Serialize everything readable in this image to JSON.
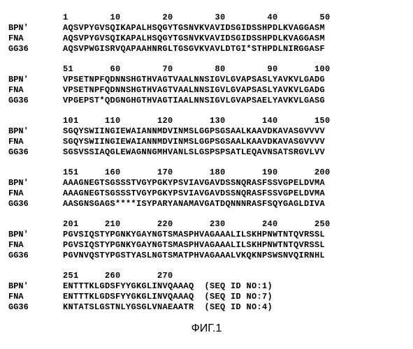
{
  "figure": {
    "caption": "ФИГ.1",
    "font_family_seq": "Courier New",
    "font_weight_seq": "bold",
    "font_size_seq_pt": 9,
    "font_family_caption": "Arial",
    "font_size_caption_pt": 12,
    "background_color": "#ffffff",
    "text_color": "#000000"
  },
  "alignment": {
    "labels": [
      "BPN'",
      "FNA",
      "GG36"
    ],
    "blocks": [
      {
        "ruler": "1        10        20        30        40        50",
        "rows": [
          "AQSVPYGVSQIKAPALHSQGYTGSNVKVAVIDSGIDSSHPDLKVAGGASM",
          "AQSVPYGVSQIKAPALHSQGYTGSNVKVAVIDSGIDSSHPDLKVAGGASM",
          "AQSVPWGISRVQAPAAHNRGLTGSGVKVAVLDTGI*STHPDLNIRGGASF"
        ]
      },
      {
        "ruler": "51       60        70        80        90       100",
        "rows": [
          "VPSETNPFQDNNSHGTHVAGTVAALNNSIGVLGVAPSASLYAVKVLGADG",
          "VPSETNPFQDNNSHGTHVAGTVAALNNSIGVLGVAPSASLYAVKVLGADG",
          "VPGEPST*QDGNGHGTHVAGTIAALNNSIGVLGVAPSAELYAVKVLGASG"
        ]
      },
      {
        "ruler": "101     110       120       130       140       150",
        "rows": [
          "SGQYSWIINGIEWAIANNMDVINMSLGGPSGSAALKAAVDKAVASGVVVV",
          "SGQYSWIINGIEWAIANNMDVINMSLGGPSGSAALKAAVDKAVASGVVVV",
          "SGSVSSIAQGLEWAGNNGMHVANLSLGSPSPSATLEQAVNSATSRGVLVV"
        ]
      },
      {
        "ruler": "151     160       170       180       190       200",
        "rows": [
          "AAAGNEGTSGSSSTVGYPGKYPSVIAVGAVDSSNQRASFSSVGPELDVMA",
          "AAAGNEGTSGSSSTVGYPGKYPSVIAVGAVDSSNQRASFSSVGPELDVMA",
          "AASGNSGAGS****ISYPARYANAMAVGATDQNNNRASFSQYGAGLDIVA"
        ]
      },
      {
        "ruler": "201     210       220       230       240       250",
        "rows": [
          "PGVSIQSTYPGNKYGAYNGTSMASPHVAGAAALILSKHPNWTNTQVRSSL",
          "PGVSIQSTYPGNKYGAYNGTSMASPHVAGAAALILSKHPNWTNTQVRSSL",
          "PGVNVQSTYPGSTYASLNGTSMATPHVAGAAALVKQKNPSWSNVQIRNHL"
        ]
      },
      {
        "ruler": "251     260       270",
        "rows": [
          "ENTTTKLGDSFYYGKGLINVQAAAQ  (SEQ ID NO:1)",
          "ENTTTKLGDSFYYGKGLINVQAAAQ  (SEQ ID NO:7)",
          "KNTATSLGSTNLYGSGLVNAEAATR  (SEQ ID NO:4)"
        ]
      }
    ]
  }
}
